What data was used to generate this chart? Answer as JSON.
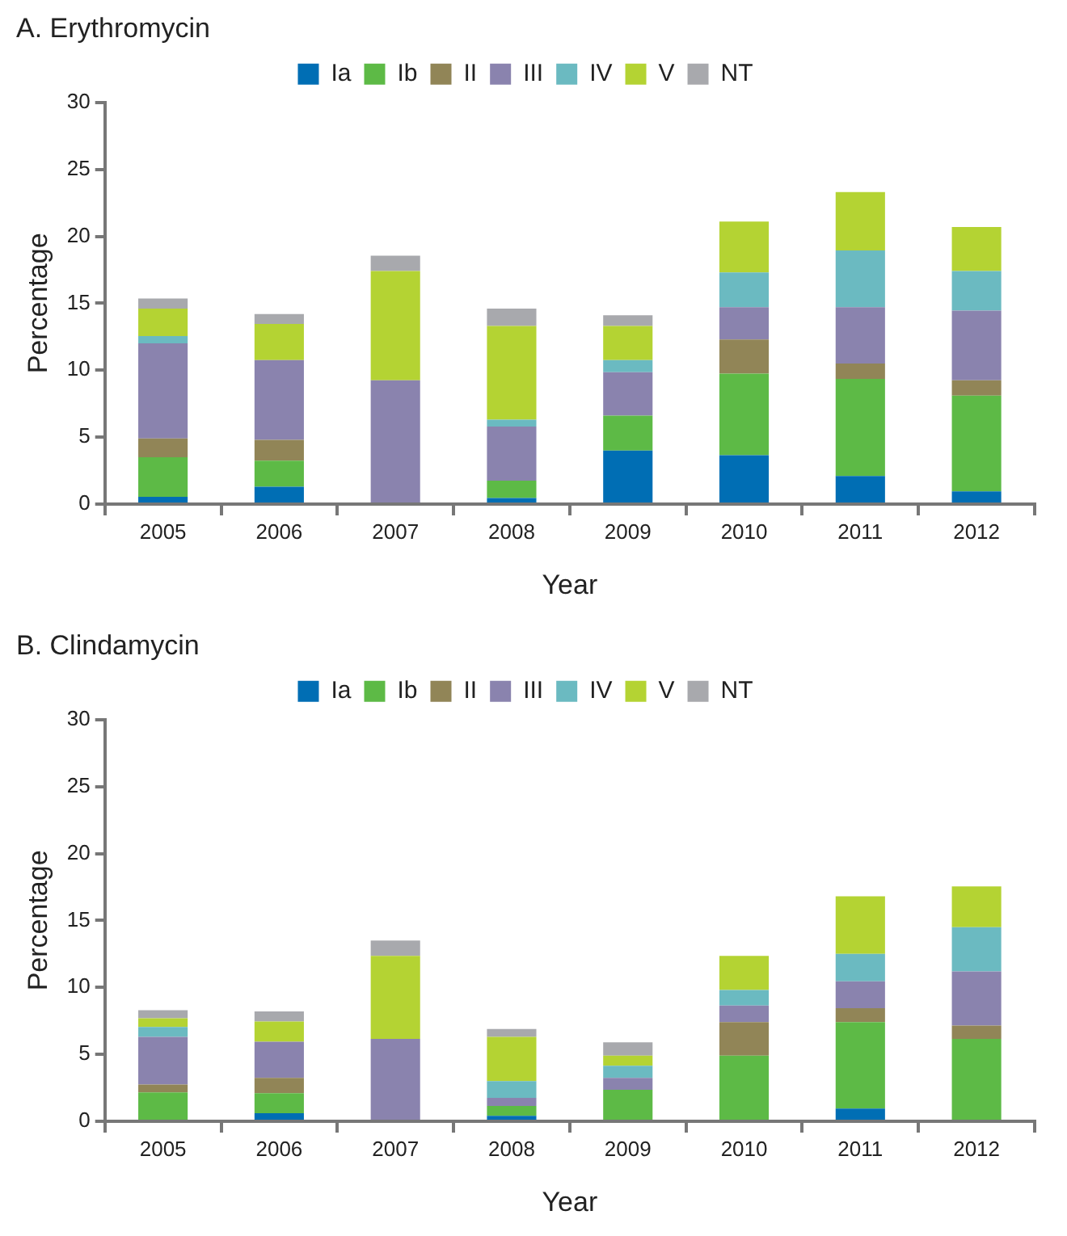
{
  "chart_data": [
    {
      "type": "bar",
      "title": "A. Erythromycin",
      "xlabel": "Year",
      "ylabel": "Percentage",
      "categories": [
        "2005",
        "2006",
        "2007",
        "2008",
        "2009",
        "2010",
        "2011",
        "2012"
      ],
      "stacked": true,
      "ylim": [
        0,
        30
      ],
      "yticks": [
        0,
        5,
        10,
        15,
        20,
        25,
        30
      ],
      "grid": false,
      "legend": "top",
      "series": [
        {
          "name": "Ia",
          "color": "#006eb4",
          "values": [
            0.55,
            1.3,
            0,
            0.45,
            4.0,
            3.65,
            2.1,
            0.95
          ]
        },
        {
          "name": "Ib",
          "color": "#5dba46",
          "values": [
            2.95,
            1.95,
            0,
            1.3,
            2.6,
            6.1,
            7.25,
            7.15
          ]
        },
        {
          "name": "II",
          "color": "#918557",
          "values": [
            1.4,
            1.55,
            0,
            0,
            0,
            2.55,
            1.15,
            1.15
          ]
        },
        {
          "name": "III",
          "color": "#8a83ae",
          "values": [
            7.1,
            5.95,
            9.25,
            4.05,
            3.25,
            2.4,
            4.2,
            5.2
          ]
        },
        {
          "name": "IV",
          "color": "#6bbac1",
          "values": [
            0.55,
            0,
            0,
            0.5,
            0.9,
            2.6,
            4.25,
            2.95
          ]
        },
        {
          "name": "V",
          "color": "#b4d333",
          "values": [
            2.05,
            2.7,
            8.15,
            7.0,
            2.55,
            3.8,
            4.35,
            3.3
          ]
        },
        {
          "name": "NT",
          "color": "#a8a9ad",
          "values": [
            0.75,
            0.75,
            1.15,
            1.3,
            0.8,
            0,
            0,
            0
          ]
        }
      ]
    },
    {
      "type": "bar",
      "title": "B. Clindamycin",
      "xlabel": "Year",
      "ylabel": "Percentage",
      "categories": [
        "2005",
        "2006",
        "2007",
        "2008",
        "2009",
        "2010",
        "2011",
        "2012"
      ],
      "stacked": true,
      "ylim": [
        0,
        30
      ],
      "yticks": [
        0,
        5,
        10,
        15,
        20,
        25,
        30
      ],
      "grid": false,
      "legend": "top",
      "series": [
        {
          "name": "Ia",
          "color": "#006eb4",
          "values": [
            0,
            0.6,
            0,
            0.4,
            0,
            0,
            0.95,
            0
          ]
        },
        {
          "name": "Ib",
          "color": "#5dba46",
          "values": [
            2.15,
            1.5,
            0,
            0.75,
            2.35,
            4.9,
            6.45,
            6.15
          ]
        },
        {
          "name": "II",
          "color": "#918557",
          "values": [
            0.6,
            1.15,
            0,
            0,
            0,
            2.5,
            1.05,
            1.0
          ]
        },
        {
          "name": "III",
          "color": "#8a83ae",
          "values": [
            3.55,
            2.7,
            6.15,
            0.6,
            0.9,
            1.25,
            2.0,
            4.05
          ]
        },
        {
          "name": "IV",
          "color": "#6bbac1",
          "values": [
            0.75,
            0,
            0,
            1.25,
            0.9,
            1.15,
            2.05,
            3.3
          ]
        },
        {
          "name": "V",
          "color": "#b4d333",
          "values": [
            0.65,
            1.5,
            6.2,
            3.3,
            0.75,
            2.55,
            4.3,
            3.05
          ]
        },
        {
          "name": "NT",
          "color": "#a8a9ad",
          "values": [
            0.6,
            0.75,
            1.15,
            0.6,
            1.0,
            0,
            0,
            0
          ]
        }
      ]
    }
  ]
}
